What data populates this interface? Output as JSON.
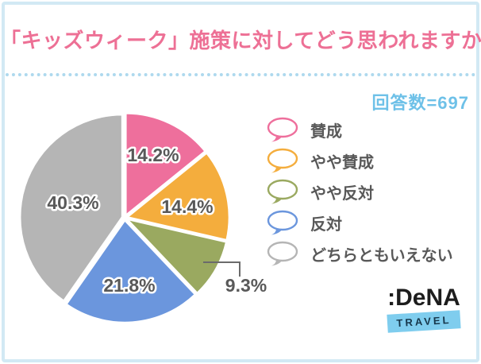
{
  "header": {
    "title": "「キッズウィーク」施策に対してどう思われますか？",
    "respondents_display": "回答数=697"
  },
  "legend": {
    "items": [
      {
        "label": "賛成",
        "color": "#ee6f9c"
      },
      {
        "label": "やや賛成",
        "color": "#f4ad3d"
      },
      {
        "label": "やや反対",
        "color": "#9aa960"
      },
      {
        "label": "反対",
        "color": "#6b96dd"
      },
      {
        "label": "どちらともいえない",
        "color": "#b5b5b5"
      }
    ]
  },
  "chart_data": {
    "type": "pie",
    "title": "「キッズウィーク」施策に対してどう思われますか？",
    "respondents": 697,
    "unit": "%",
    "labels": [
      "賛成",
      "やや賛成",
      "やや反対",
      "反対",
      "どちらともいえない"
    ],
    "values": [
      14.2,
      14.4,
      9.3,
      21.8,
      40.3
    ],
    "data_labels": [
      "14.2%",
      "14.4%",
      "9.3%",
      "21.8%",
      "40.3%"
    ],
    "colors": [
      "#ee6f9c",
      "#f4ad3d",
      "#9aa960",
      "#6b96dd",
      "#b5b5b5"
    ],
    "start_angle_deg": 0,
    "direction": "clockwise",
    "legend_position": "right",
    "slice_label_color": "#595959"
  },
  "logo": {
    "brand": ":DeNA",
    "banner": "TRAVEL"
  },
  "theme": {
    "title_color": "#ed7095",
    "respondents_color": "#6ec1e8",
    "frame_color": "#d2e9f4",
    "dotted_color": "#aed9ee",
    "callout_color": "#6b6b6b"
  }
}
